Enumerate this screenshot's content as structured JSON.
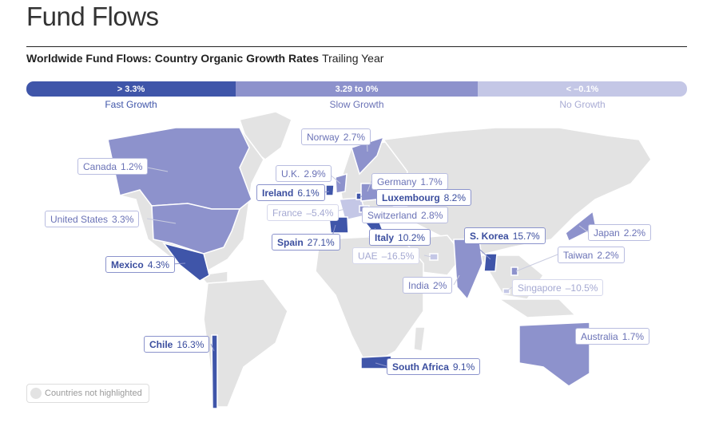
{
  "page_title": "Fund Flows",
  "chart_data": {
    "type": "choropleth-map",
    "title": "Worldwide Fund Flows: Country Organic Growth Rates",
    "subtitle": "Trailing Year",
    "legend": [
      {
        "range": "> 3.3%",
        "label": "Fast Growth",
        "color": "#3f55a9"
      },
      {
        "range": "3.29 to 0%",
        "label": "Slow Growth",
        "color": "#8d92cc"
      },
      {
        "range": "< –0.1%",
        "label": "No Growth",
        "color": "#c4c7e6"
      }
    ],
    "countries": [
      {
        "name": "Canada",
        "value": "1.2%",
        "category": "slow"
      },
      {
        "name": "United States",
        "value": "3.3%",
        "category": "slow"
      },
      {
        "name": "Mexico",
        "value": "4.3%",
        "category": "fast"
      },
      {
        "name": "Chile",
        "value": "16.3%",
        "category": "fast"
      },
      {
        "name": "Norway",
        "value": "2.7%",
        "category": "slow"
      },
      {
        "name": "U.K.",
        "value": "2.9%",
        "category": "slow"
      },
      {
        "name": "Ireland",
        "value": "6.1%",
        "category": "fast"
      },
      {
        "name": "France",
        "value": "–5.4%",
        "category": "no"
      },
      {
        "name": "Spain",
        "value": "27.1%",
        "category": "fast"
      },
      {
        "name": "Germany",
        "value": "1.7%",
        "category": "slow"
      },
      {
        "name": "Luxembourg",
        "value": "8.2%",
        "category": "fast"
      },
      {
        "name": "Switzerland",
        "value": "2.8%",
        "category": "slow"
      },
      {
        "name": "Italy",
        "value": "10.2%",
        "category": "fast"
      },
      {
        "name": "UAE",
        "value": "–16.5%",
        "category": "no"
      },
      {
        "name": "India",
        "value": "2%",
        "category": "slow"
      },
      {
        "name": "S. Korea",
        "value": "15.7%",
        "category": "fast"
      },
      {
        "name": "Japan",
        "value": "2.2%",
        "category": "slow"
      },
      {
        "name": "Taiwan",
        "value": "2.2%",
        "category": "slow"
      },
      {
        "name": "Singapore",
        "value": "–10.5%",
        "category": "no"
      },
      {
        "name": "South Africa",
        "value": "9.1%",
        "category": "fast"
      },
      {
        "name": "Australia",
        "value": "1.7%",
        "category": "slow"
      }
    ],
    "not_highlighted_label": "Countries not highlighted",
    "colors": {
      "fast": "#3f55a9",
      "slow": "#8d92cc",
      "no": "#c4c7e6",
      "other": "#e3e3e3"
    }
  }
}
